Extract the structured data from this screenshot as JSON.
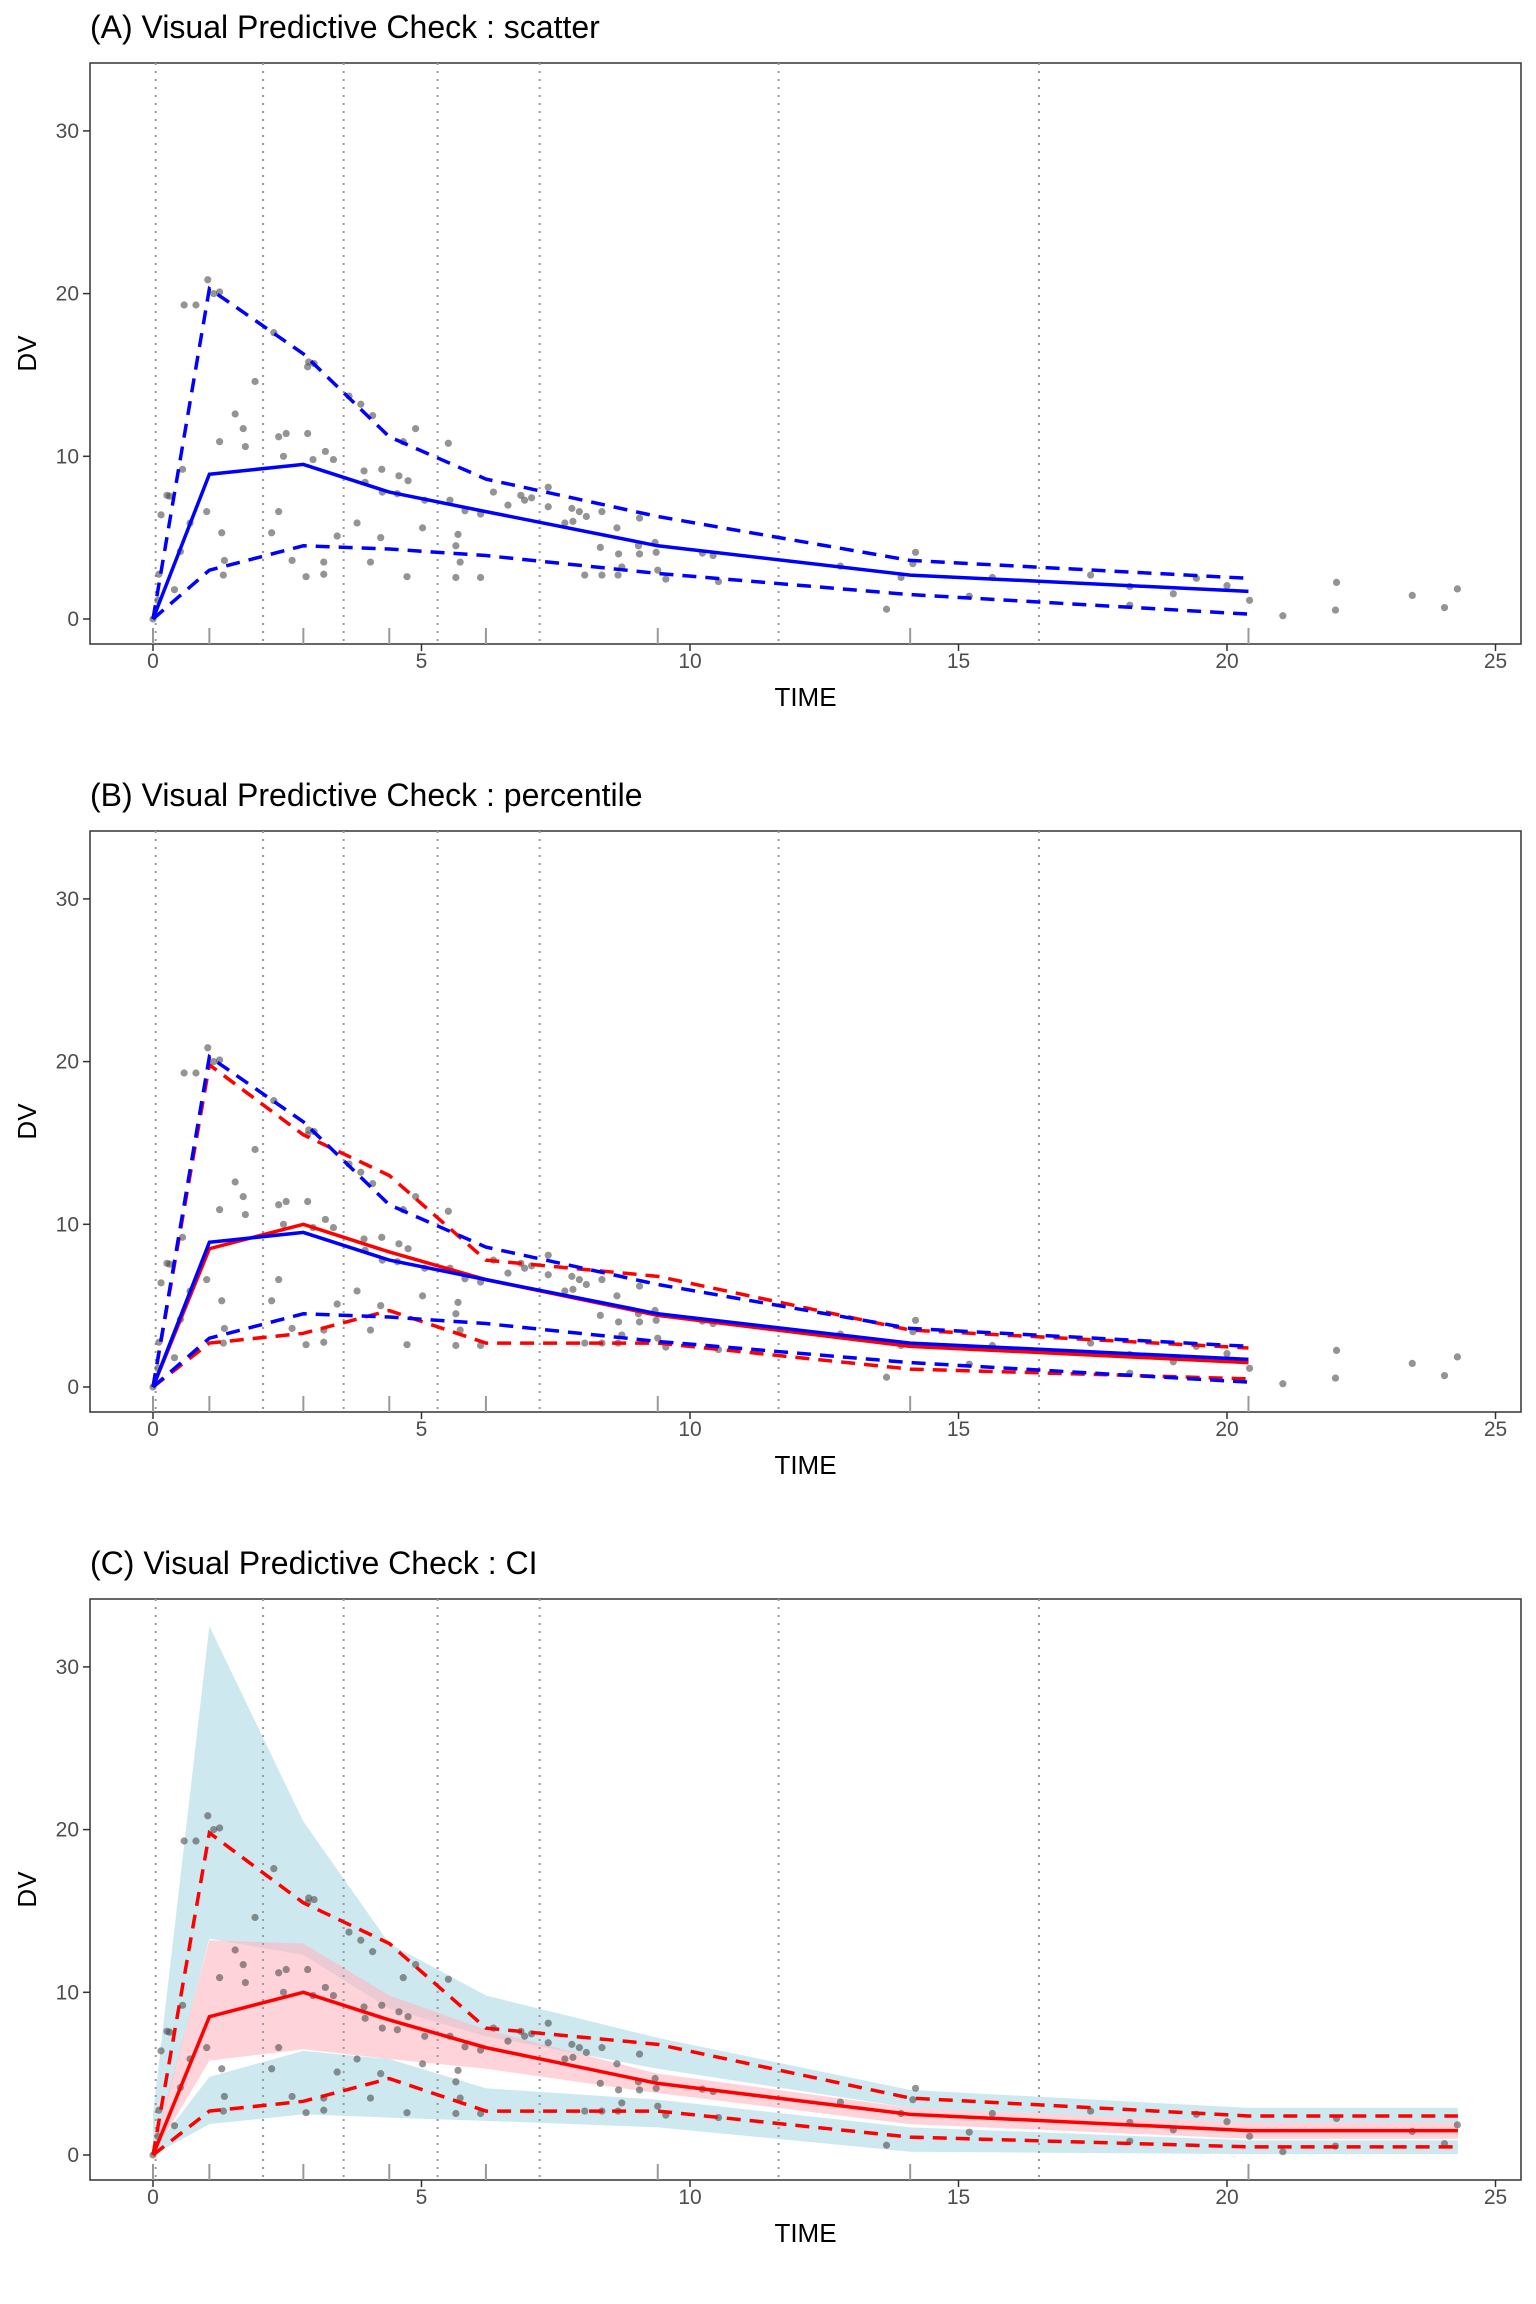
{
  "chart_data": [
    {
      "type": "scatter",
      "title": "(A) Visual Predictive Check : scatter",
      "xlabel": "TIME",
      "ylabel": "DV",
      "xlim": [
        -1.2,
        25.5
      ],
      "ylim": [
        -1.5,
        34
      ],
      "xticks": [
        0,
        5,
        10,
        15,
        20,
        25
      ],
      "yticks": [
        0,
        10,
        20,
        30
      ],
      "grid": false,
      "show": {
        "observed": true,
        "simulated": false,
        "ci": false
      }
    },
    {
      "type": "line",
      "title": "(B) Visual Predictive Check : percentile",
      "xlabel": "TIME",
      "ylabel": "DV",
      "xlim": [
        -1.2,
        25.5
      ],
      "ylim": [
        -1.5,
        34
      ],
      "xticks": [
        0,
        5,
        10,
        15,
        20,
        25
      ],
      "yticks": [
        0,
        10,
        20,
        30
      ],
      "grid": false,
      "show": {
        "observed": true,
        "simulated": true,
        "ci": false
      }
    },
    {
      "type": "area",
      "title": "(C) Visual Predictive Check : CI",
      "xlabel": "TIME",
      "ylabel": "DV",
      "xlim": [
        -1.2,
        25.5
      ],
      "ylim": [
        -1.5,
        34
      ],
      "xticks": [
        0,
        5,
        10,
        15,
        20,
        25
      ],
      "yticks": [
        0,
        10,
        20,
        30
      ],
      "grid": false,
      "show": {
        "observed": false,
        "simulated": true,
        "ci": true
      }
    }
  ],
  "shared": {
    "bin_boundaries": [
      0.05,
      2.05,
      3.55,
      5.3,
      7.2,
      11.65,
      16.5
    ],
    "bin_midpoints": [
      0,
      1.05,
      2.8,
      4.4,
      6.2,
      9.4,
      14.1,
      20.4
    ],
    "observed_percentiles": {
      "x": [
        0,
        1.05,
        2.8,
        4.4,
        6.2,
        9.4,
        14.1,
        20.4
      ],
      "p50": [
        0,
        8.9,
        9.5,
        7.8,
        6.6,
        4.5,
        2.7,
        1.7
      ],
      "p95": [
        0,
        20.3,
        16.3,
        11.2,
        8.6,
        6.3,
        3.6,
        2.5
      ],
      "p05": [
        0,
        3.0,
        4.5,
        4.3,
        3.9,
        2.8,
        1.5,
        0.3
      ]
    },
    "simulated_percentiles": {
      "x": [
        0,
        1.05,
        2.8,
        4.4,
        6.2,
        9.4,
        14.1,
        20.4,
        24.3
      ],
      "p50": [
        0,
        8.5,
        10.0,
        8.3,
        6.6,
        4.4,
        2.5,
        1.5,
        1.5
      ],
      "p95": [
        0,
        19.8,
        15.5,
        13.0,
        7.8,
        6.8,
        3.5,
        2.4,
        2.4
      ],
      "p05": [
        0,
        2.7,
        3.3,
        4.7,
        2.7,
        2.7,
        1.1,
        0.5,
        0.5
      ]
    },
    "ci_bands": {
      "x": [
        0,
        1.05,
        2.8,
        4.4,
        6.2,
        9.4,
        14.1,
        20.4,
        24.3
      ],
      "upper_hi": [
        2.5,
        32.5,
        20.5,
        13.0,
        9.8,
        7.2,
        4.0,
        2.9,
        2.9
      ],
      "upper_lo": [
        0,
        13.3,
        12.3,
        9.0,
        7.3,
        5.3,
        2.9,
        2.0,
        2.0
      ],
      "median_hi": [
        0.3,
        13.2,
        13.0,
        9.8,
        7.7,
        5.0,
        2.9,
        2.0,
        2.0
      ],
      "median_lo": [
        0,
        5.8,
        6.5,
        5.9,
        5.3,
        3.8,
        1.9,
        1.0,
        1.0
      ],
      "lower_hi": [
        0.3,
        4.8,
        6.4,
        5.9,
        4.1,
        3.4,
        1.7,
        0.9,
        0.9
      ],
      "lower_lo": [
        0,
        1.9,
        2.5,
        2.3,
        2.1,
        1.7,
        0.2,
        0.05,
        0.05
      ]
    },
    "points": [
      [
        1.02,
        20.85
      ],
      [
        0.58,
        19.3
      ],
      [
        0.8,
        19.3
      ],
      [
        1.13,
        20.0
      ],
      [
        1.24,
        20.1
      ],
      [
        2.25,
        17.6
      ],
      [
        1.9,
        14.6
      ],
      [
        2.9,
        15.8
      ],
      [
        3.0,
        15.7
      ],
      [
        2.88,
        15.5
      ],
      [
        3.65,
        13.7
      ],
      [
        3.87,
        13.2
      ],
      [
        4.09,
        12.5
      ],
      [
        1.53,
        12.6
      ],
      [
        1.68,
        11.7
      ],
      [
        1.24,
        10.9
      ],
      [
        1.72,
        10.6
      ],
      [
        2.34,
        11.2
      ],
      [
        2.48,
        11.4
      ],
      [
        2.88,
        11.4
      ],
      [
        2.43,
        10.0
      ],
      [
        2.98,
        9.8
      ],
      [
        3.21,
        10.3
      ],
      [
        3.36,
        9.8
      ],
      [
        4.66,
        10.9
      ],
      [
        4.89,
        11.7
      ],
      [
        5.5,
        10.8
      ],
      [
        3.93,
        9.1
      ],
      [
        4.26,
        9.2
      ],
      [
        4.58,
        8.8
      ],
      [
        4.75,
        8.5
      ],
      [
        3.95,
        8.4
      ],
      [
        4.27,
        7.8
      ],
      [
        4.55,
        7.7
      ],
      [
        5.06,
        7.3
      ],
      [
        5.53,
        7.3
      ],
      [
        0.55,
        9.2
      ],
      [
        0.26,
        7.6
      ],
      [
        0.31,
        7.55
      ],
      [
        0.15,
        6.4
      ],
      [
        1.0,
        6.6
      ],
      [
        0.69,
        5.9
      ],
      [
        0.51,
        4.15
      ],
      [
        1.28,
        5.3
      ],
      [
        0.4,
        1.8
      ],
      [
        0.11,
        2.75
      ],
      [
        0.09,
        1.15
      ],
      [
        1.33,
        3.6
      ],
      [
        1.31,
        2.7
      ],
      [
        2.34,
        6.6
      ],
      [
        2.21,
        5.3
      ],
      [
        2.59,
        3.6
      ],
      [
        2.85,
        2.6
      ],
      [
        3.18,
        3.5
      ],
      [
        3.18,
        2.75
      ],
      [
        3.43,
        5.1
      ],
      [
        3.8,
        5.9
      ],
      [
        4.24,
        5.0
      ],
      [
        4.05,
        3.5
      ],
      [
        4.73,
        2.6
      ],
      [
        5.02,
        5.6
      ],
      [
        5.68,
        5.2
      ],
      [
        5.64,
        4.5
      ],
      [
        5.72,
        3.5
      ],
      [
        5.64,
        2.55
      ],
      [
        6.1,
        2.55
      ],
      [
        5.81,
        6.65
      ],
      [
        6.1,
        6.45
      ],
      [
        6.34,
        7.8
      ],
      [
        6.61,
        7.0
      ],
      [
        6.85,
        7.6
      ],
      [
        6.92,
        7.3
      ],
      [
        7.05,
        7.45
      ],
      [
        7.36,
        8.1
      ],
      [
        7.36,
        6.9
      ],
      [
        7.67,
        5.9
      ],
      [
        7.82,
        6.0
      ],
      [
        7.8,
        6.8
      ],
      [
        7.94,
        6.6
      ],
      [
        8.07,
        6.3
      ],
      [
        8.36,
        6.6
      ],
      [
        8.33,
        4.4
      ],
      [
        8.04,
        2.7
      ],
      [
        8.36,
        2.7
      ],
      [
        8.64,
        5.6
      ],
      [
        8.67,
        4.0
      ],
      [
        8.73,
        3.2
      ],
      [
        8.66,
        2.7
      ],
      [
        9.06,
        6.2
      ],
      [
        9.04,
        4.5
      ],
      [
        9.06,
        4.0
      ],
      [
        9.35,
        4.7
      ],
      [
        9.37,
        4.1
      ],
      [
        9.4,
        3.0
      ],
      [
        9.55,
        2.45
      ],
      [
        10.23,
        4.05
      ],
      [
        10.43,
        3.9
      ],
      [
        10.53,
        2.3
      ],
      [
        12.8,
        3.25
      ],
      [
        13.66,
        0.6
      ],
      [
        13.93,
        2.55
      ],
      [
        14.15,
        3.4
      ],
      [
        14.2,
        4.1
      ],
      [
        15.2,
        1.4
      ],
      [
        15.63,
        2.55
      ],
      [
        17.46,
        2.7
      ],
      [
        18.19,
        2.0
      ],
      [
        18.19,
        0.85
      ],
      [
        19.0,
        1.55
      ],
      [
        19.43,
        2.5
      ],
      [
        20.0,
        2.05
      ],
      [
        20.42,
        1.15
      ],
      [
        21.04,
        0.2
      ],
      [
        22.04,
        2.25
      ],
      [
        22.02,
        0.55
      ],
      [
        23.45,
        1.45
      ],
      [
        24.05,
        0.7
      ],
      [
        24.29,
        1.85
      ],
      [
        0,
        0
      ]
    ],
    "colors": {
      "observed": "#0000ff",
      "simulated": "#ff0000",
      "ci_outer": "#add8e6",
      "ci_median": "#ffb6c1",
      "points": "#4d4d4d"
    }
  }
}
